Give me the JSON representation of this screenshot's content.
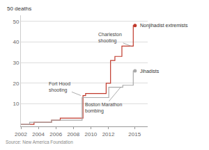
{
  "chart_data": {
    "type": "step",
    "ylabel": "50 deaths",
    "source": "Source: New America Foundation",
    "xlim": [
      2002,
      2016.5
    ],
    "ylim": [
      -1,
      53
    ],
    "xticks": [
      2002,
      2004,
      2006,
      2008,
      2010,
      2012,
      2015
    ],
    "yticks": [
      10,
      20,
      30,
      40,
      50
    ],
    "grid": true,
    "series": [
      {
        "name": "Nonjihadist extremists",
        "color": "#c0392b",
        "x": [
          2002,
          2003.5,
          2003.8,
          2005.5,
          2005.8,
          2006.5,
          2006.8,
          2008.85,
          2009.1,
          2009.4,
          2011.5,
          2011.75,
          2012.0,
          2012.25,
          2012.5,
          2012.75,
          2013.3,
          2013.55,
          2014.6,
          2014.85,
          2015.05
        ],
        "values": [
          0,
          1,
          1,
          2,
          2,
          3,
          3,
          3,
          14,
          15,
          15,
          20,
          20,
          31,
          31,
          33,
          33,
          38,
          38,
          48,
          48
        ]
      },
      {
        "name": "Jihadists",
        "color": "#aaaaaa",
        "x": [
          2002,
          2003.0,
          2003.3,
          2005.5,
          2005.8,
          2009.0,
          2009.3,
          2011.8,
          2012.05,
          2013.4,
          2013.65,
          2014.6,
          2014.85,
          2015.05
        ],
        "values": [
          0,
          1,
          1,
          2,
          2,
          13,
          13,
          13,
          18,
          18,
          19,
          19,
          26,
          26
        ]
      }
    ],
    "annotations": [
      {
        "text": "Fort Hood\nshooting",
        "x": 2008.85,
        "y": 14
      },
      {
        "text": "Charleston\nshooting",
        "x": 2014.6,
        "y": 38
      },
      {
        "text": "Boston Marathon\nbombing",
        "x": 2013.4,
        "y": 18
      }
    ]
  }
}
